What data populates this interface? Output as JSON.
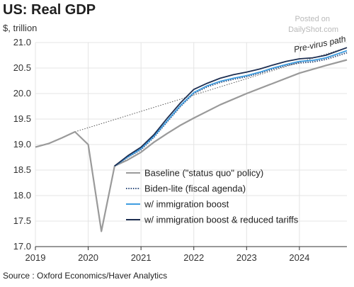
{
  "chart_data": {
    "type": "line",
    "title": "US: Real GDP",
    "subtitle": "$, trillion",
    "source": "Source : Oxford Economics/Haver Analytics",
    "watermark": [
      "Posted on",
      "DailyShot.com"
    ],
    "annotation": "Pre-virus path",
    "xlim": [
      2019.0,
      2024.9
    ],
    "ylim": [
      17.0,
      21.0
    ],
    "x_ticks": [
      2019,
      2020,
      2021,
      2022,
      2023,
      2024
    ],
    "y_ticks": [
      "17.0",
      "17.5",
      "18.0",
      "18.5",
      "19.0",
      "19.5",
      "20.0",
      "20.5",
      "21.0"
    ],
    "grid": true,
    "legend_position": "center-right",
    "pre_virus_path": {
      "x": [
        2019.75,
        2024.9
      ],
      "y": [
        19.25,
        20.9
      ],
      "color": "#555555"
    },
    "series": [
      {
        "name": "Baseline (\"status quo\" policy)",
        "color": "#9a9a9a",
        "style": "solid",
        "x": [
          2019.0,
          2019.25,
          2019.5,
          2019.75,
          2020.0,
          2020.25,
          2020.5,
          2020.75,
          2021.0,
          2021.25,
          2021.5,
          2021.75,
          2022.0,
          2022.5,
          2023.0,
          2023.5,
          2024.0,
          2024.5,
          2024.9
        ],
        "y": [
          18.95,
          19.02,
          19.13,
          19.25,
          19.0,
          17.3,
          18.58,
          18.7,
          18.85,
          19.05,
          19.22,
          19.38,
          19.52,
          19.78,
          20.0,
          20.2,
          20.4,
          20.55,
          20.66
        ]
      },
      {
        "name": "Biden-lite (fiscal agenda)",
        "color": "#2b4a7a",
        "style": "dotted",
        "x": [
          2020.5,
          2020.75,
          2021.0,
          2021.25,
          2021.5,
          2021.75,
          2022.0,
          2022.25,
          2022.5,
          2022.75,
          2023.0,
          2023.25,
          2023.5,
          2023.75,
          2024.0,
          2024.25,
          2024.5,
          2024.9
        ],
        "y": [
          18.58,
          18.75,
          18.9,
          19.15,
          19.45,
          19.75,
          20.0,
          20.13,
          20.22,
          20.28,
          20.33,
          20.4,
          20.48,
          20.55,
          20.6,
          20.62,
          20.67,
          20.8
        ]
      },
      {
        "name": "w/ immigration boost",
        "color": "#3f9de0",
        "style": "solid",
        "x": [
          2020.5,
          2020.75,
          2021.0,
          2021.25,
          2021.5,
          2021.75,
          2022.0,
          2022.25,
          2022.5,
          2022.75,
          2023.0,
          2023.25,
          2023.5,
          2023.75,
          2024.0,
          2024.25,
          2024.5,
          2024.9
        ],
        "y": [
          18.58,
          18.76,
          18.92,
          19.17,
          19.47,
          19.77,
          20.02,
          20.15,
          20.24,
          20.3,
          20.35,
          20.42,
          20.5,
          20.57,
          20.63,
          20.65,
          20.7,
          20.84
        ]
      },
      {
        "name": "w/ immigration boost & reduced tariffs",
        "color": "#1e2f52",
        "style": "solid",
        "x": [
          2020.5,
          2020.75,
          2021.0,
          2021.25,
          2021.5,
          2021.75,
          2022.0,
          2022.25,
          2022.5,
          2022.75,
          2023.0,
          2023.25,
          2023.5,
          2023.75,
          2024.0,
          2024.25,
          2024.5,
          2024.9
        ],
        "y": [
          18.58,
          18.78,
          18.95,
          19.2,
          19.52,
          19.82,
          20.08,
          20.2,
          20.3,
          20.37,
          20.42,
          20.48,
          20.56,
          20.63,
          20.68,
          20.7,
          20.75,
          20.9
        ]
      }
    ]
  }
}
